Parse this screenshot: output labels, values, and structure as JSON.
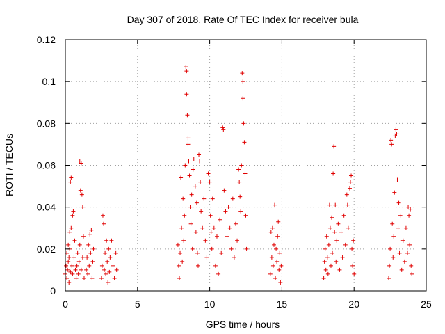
{
  "chart_data": {
    "type": "scatter",
    "title": "Day 307 of 2018, Rate Of TEC Index for receiver bula",
    "xlabel": "GPS time / hours",
    "ylabel": "ROTI / TECUs",
    "xlim": [
      0,
      25
    ],
    "ylim": [
      0,
      0.12
    ],
    "x_ticks": [
      0,
      5,
      10,
      15,
      20,
      25
    ],
    "y_ticks": [
      0,
      0.02,
      0.04,
      0.06,
      0.08,
      0.1,
      0.12
    ],
    "x_tick_labels": [
      "0",
      "5",
      "10",
      "15",
      "20",
      "25"
    ],
    "y_tick_labels": [
      "0",
      "0.02",
      "0.04",
      "0.06",
      "0.08",
      "0.1",
      "0.12"
    ],
    "grid": true,
    "marker": "plus",
    "color": "#e00000",
    "series": [
      {
        "points": [
          [
            0.0,
            0.008
          ],
          [
            0.05,
            0.012
          ],
          [
            0.1,
            0.006
          ],
          [
            0.1,
            0.018
          ],
          [
            0.15,
            0.01
          ],
          [
            0.2,
            0.014
          ],
          [
            0.2,
            0.022
          ],
          [
            0.25,
            0.004
          ],
          [
            0.25,
            0.016
          ],
          [
            0.3,
            0.02
          ],
          [
            0.3,
            0.028
          ],
          [
            0.35,
            0.009
          ],
          [
            0.35,
            0.052
          ],
          [
            0.4,
            0.054
          ],
          [
            0.4,
            0.03
          ],
          [
            0.45,
            0.012
          ],
          [
            0.5,
            0.036
          ],
          [
            0.5,
            0.008
          ],
          [
            0.55,
            0.038
          ],
          [
            0.6,
            0.016
          ],
          [
            0.65,
            0.024
          ],
          [
            0.7,
            0.01
          ],
          [
            0.75,
            0.006
          ],
          [
            0.8,
            0.012
          ],
          [
            0.85,
            0.018
          ],
          [
            0.9,
            0.008
          ],
          [
            0.95,
            0.014
          ],
          [
            1.0,
            0.062
          ],
          [
            1.0,
            0.022
          ],
          [
            1.05,
            0.048
          ],
          [
            1.1,
            0.061
          ],
          [
            1.1,
            0.01
          ],
          [
            1.15,
            0.046
          ],
          [
            1.2,
            0.04
          ],
          [
            1.2,
            0.016
          ],
          [
            1.25,
            0.026
          ],
          [
            1.3,
            0.006
          ],
          [
            1.45,
            0.01
          ],
          [
            1.5,
            0.016
          ],
          [
            1.55,
            0.008
          ],
          [
            1.6,
            0.022
          ],
          [
            1.65,
            0.012
          ],
          [
            1.7,
            0.027
          ],
          [
            1.75,
            0.018
          ],
          [
            1.8,
            0.029
          ],
          [
            1.85,
            0.006
          ],
          [
            1.9,
            0.014
          ],
          [
            1.95,
            0.02
          ],
          [
            2.5,
            0.006
          ],
          [
            2.55,
            0.012
          ],
          [
            2.6,
            0.036
          ],
          [
            2.65,
            0.032
          ],
          [
            2.7,
            0.01
          ],
          [
            2.75,
            0.018
          ],
          [
            2.8,
            0.008
          ],
          [
            2.85,
            0.024
          ],
          [
            2.9,
            0.014
          ],
          [
            2.95,
            0.004
          ],
          [
            3.0,
            0.02
          ],
          [
            3.05,
            0.009
          ],
          [
            3.1,
            0.016
          ],
          [
            3.2,
            0.024
          ],
          [
            3.3,
            0.012
          ],
          [
            3.4,
            0.006
          ],
          [
            3.5,
            0.018
          ],
          [
            3.55,
            0.01
          ],
          [
            7.8,
            0.022
          ],
          [
            7.85,
            0.012
          ],
          [
            7.9,
            0.006
          ],
          [
            7.95,
            0.018
          ],
          [
            8.0,
            0.054
          ],
          [
            8.05,
            0.03
          ],
          [
            8.1,
            0.014
          ],
          [
            8.15,
            0.044
          ],
          [
            8.2,
            0.024
          ],
          [
            8.25,
            0.036
          ],
          [
            8.3,
            0.06
          ],
          [
            8.35,
            0.107
          ],
          [
            8.4,
            0.105
          ],
          [
            8.4,
            0.094
          ],
          [
            8.45,
            0.084
          ],
          [
            8.5,
            0.073
          ],
          [
            8.5,
            0.07
          ],
          [
            8.55,
            0.062
          ],
          [
            8.6,
            0.055
          ],
          [
            8.65,
            0.04
          ],
          [
            8.7,
            0.032
          ],
          [
            8.75,
            0.046
          ],
          [
            8.8,
            0.02
          ],
          [
            8.85,
            0.058
          ],
          [
            8.9,
            0.063
          ],
          [
            9.0,
            0.05
          ],
          [
            9.05,
            0.028
          ],
          [
            9.1,
            0.042
          ],
          [
            9.15,
            0.018
          ],
          [
            9.2,
            0.012
          ],
          [
            9.25,
            0.065
          ],
          [
            9.3,
            0.062
          ],
          [
            9.35,
            0.052
          ],
          [
            9.4,
            0.038
          ],
          [
            9.5,
            0.03
          ],
          [
            9.6,
            0.044
          ],
          [
            9.7,
            0.024
          ],
          [
            9.8,
            0.016
          ],
          [
            9.9,
            0.056
          ],
          [
            10.0,
            0.052
          ],
          [
            10.05,
            0.036
          ],
          [
            10.1,
            0.028
          ],
          [
            10.15,
            0.02
          ],
          [
            10.2,
            0.044
          ],
          [
            10.3,
            0.03
          ],
          [
            10.4,
            0.012
          ],
          [
            10.5,
            0.026
          ],
          [
            10.6,
            0.008
          ],
          [
            10.7,
            0.034
          ],
          [
            10.8,
            0.018
          ],
          [
            10.9,
            0.078
          ],
          [
            10.95,
            0.077
          ],
          [
            11.0,
            0.048
          ],
          [
            11.1,
            0.038
          ],
          [
            11.2,
            0.026
          ],
          [
            11.3,
            0.04
          ],
          [
            11.4,
            0.03
          ],
          [
            11.5,
            0.02
          ],
          [
            11.6,
            0.044
          ],
          [
            11.7,
            0.016
          ],
          [
            11.8,
            0.032
          ],
          [
            11.9,
            0.024
          ],
          [
            12.0,
            0.058
          ],
          [
            12.05,
            0.052
          ],
          [
            12.1,
            0.045
          ],
          [
            12.15,
            0.038
          ],
          [
            12.2,
            0.06
          ],
          [
            12.25,
            0.104
          ],
          [
            12.3,
            0.1
          ],
          [
            12.3,
            0.092
          ],
          [
            12.35,
            0.08
          ],
          [
            12.4,
            0.071
          ],
          [
            12.45,
            0.056
          ],
          [
            12.5,
            0.036
          ],
          [
            12.55,
            0.02
          ],
          [
            14.2,
            0.008
          ],
          [
            14.25,
            0.028
          ],
          [
            14.3,
            0.016
          ],
          [
            14.35,
            0.03
          ],
          [
            14.4,
            0.012
          ],
          [
            14.45,
            0.022
          ],
          [
            14.5,
            0.041
          ],
          [
            14.55,
            0.006
          ],
          [
            14.6,
            0.02
          ],
          [
            14.65,
            0.014
          ],
          [
            14.7,
            0.026
          ],
          [
            14.75,
            0.033
          ],
          [
            14.8,
            0.01
          ],
          [
            14.85,
            0.018
          ],
          [
            14.9,
            0.004
          ],
          [
            14.95,
            0.012
          ],
          [
            17.9,
            0.006
          ],
          [
            17.95,
            0.014
          ],
          [
            18.0,
            0.02
          ],
          [
            18.05,
            0.01
          ],
          [
            18.1,
            0.026
          ],
          [
            18.15,
            0.016
          ],
          [
            18.2,
            0.008
          ],
          [
            18.25,
            0.022
          ],
          [
            18.3,
            0.041
          ],
          [
            18.35,
            0.03
          ],
          [
            18.4,
            0.012
          ],
          [
            18.45,
            0.035
          ],
          [
            18.5,
            0.018
          ],
          [
            18.55,
            0.056
          ],
          [
            18.6,
            0.069
          ],
          [
            18.65,
            0.028
          ],
          [
            18.7,
            0.041
          ],
          [
            18.75,
            0.014
          ],
          [
            18.8,
            0.024
          ],
          [
            18.9,
            0.032
          ],
          [
            19.0,
            0.01
          ],
          [
            19.1,
            0.028
          ],
          [
            19.2,
            0.016
          ],
          [
            19.3,
            0.036
          ],
          [
            19.4,
            0.022
          ],
          [
            19.5,
            0.046
          ],
          [
            19.55,
            0.041
          ],
          [
            19.6,
            0.03
          ],
          [
            19.7,
            0.049
          ],
          [
            19.75,
            0.052
          ],
          [
            19.8,
            0.055
          ],
          [
            19.85,
            0.02
          ],
          [
            19.9,
            0.012
          ],
          [
            19.95,
            0.024
          ],
          [
            20.0,
            0.008
          ],
          [
            22.4,
            0.006
          ],
          [
            22.45,
            0.012
          ],
          [
            22.5,
            0.02
          ],
          [
            22.55,
            0.072
          ],
          [
            22.6,
            0.07
          ],
          [
            22.65,
            0.032
          ],
          [
            22.7,
            0.016
          ],
          [
            22.75,
            0.026
          ],
          [
            22.8,
            0.047
          ],
          [
            22.85,
            0.074
          ],
          [
            22.9,
            0.077
          ],
          [
            22.95,
            0.075
          ],
          [
            23.0,
            0.053
          ],
          [
            23.05,
            0.03
          ],
          [
            23.1,
            0.042
          ],
          [
            23.15,
            0.018
          ],
          [
            23.2,
            0.036
          ],
          [
            23.3,
            0.01
          ],
          [
            23.4,
            0.024
          ],
          [
            23.5,
            0.014
          ],
          [
            23.6,
            0.03
          ],
          [
            23.7,
            0.018
          ],
          [
            23.75,
            0.04
          ],
          [
            23.8,
            0.036
          ],
          [
            23.85,
            0.022
          ],
          [
            23.9,
            0.039
          ],
          [
            23.95,
            0.012
          ],
          [
            24.0,
            0.008
          ]
        ]
      }
    ]
  }
}
